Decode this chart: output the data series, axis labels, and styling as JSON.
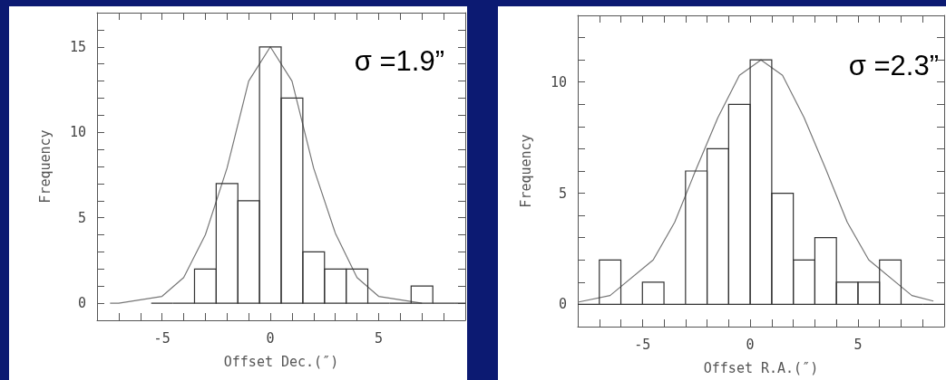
{
  "chart_data": [
    {
      "type": "histogram",
      "xlabel": "Offset Dec.(″)",
      "ylabel": "Frequency",
      "annotations": [
        "σ =1.9”"
      ],
      "xlim": [
        -8,
        9
      ],
      "ylim": [
        -1,
        17
      ],
      "grid": false,
      "xticks": [
        {
          "value": -7,
          "label": null
        },
        {
          "value": -6,
          "label": null
        },
        -5,
        {
          "value": -4,
          "label": null
        },
        {
          "value": -3,
          "label": null
        },
        {
          "value": -2,
          "label": null
        },
        {
          "value": -1,
          "label": null
        },
        0,
        {
          "value": 1,
          "label": null
        },
        {
          "value": 2,
          "label": null
        },
        {
          "value": 3,
          "label": null
        },
        {
          "value": 4,
          "label": null
        },
        5,
        {
          "value": 6,
          "label": null
        },
        {
          "value": 7,
          "label": null
        },
        {
          "value": 8,
          "label": null
        }
      ],
      "yticks": [
        0,
        {
          "value": 1,
          "label": null
        },
        {
          "value": 2,
          "label": null
        },
        {
          "value": 3,
          "label": null
        },
        {
          "value": 4,
          "label": null
        },
        5,
        {
          "value": 6,
          "label": null
        },
        {
          "value": 7,
          "label": null
        },
        {
          "value": 8,
          "label": null
        },
        {
          "value": 9,
          "label": null
        },
        10,
        {
          "value": 11,
          "label": null
        },
        {
          "value": 12,
          "label": null
        },
        {
          "value": 13,
          "label": null
        },
        {
          "value": 14,
          "label": null
        },
        15,
        {
          "value": 16,
          "label": null
        }
      ],
      "series": [
        {
          "color": "#333333",
          "bins": [
            -5.5,
            -4.5,
            -3.5,
            -2.5,
            -1.5,
            -0.5,
            0.5,
            1.5,
            2.5,
            3.5,
            4.5,
            5.5,
            6.5,
            7.5,
            8.5,
            9
          ],
          "values": [
            0,
            0,
            2,
            7,
            6,
            15,
            12,
            3,
            2,
            2,
            0,
            0,
            1,
            0,
            0
          ]
        },
        {
          "type": "line",
          "color": "#777777",
          "x": [
            -7.4,
            -7,
            -6,
            -5,
            -4,
            -3,
            -2,
            -1,
            0,
            1,
            2,
            3,
            4,
            5,
            6,
            7
          ],
          "values": [
            0,
            0,
            0.2,
            0.4,
            1.5,
            4,
            7.9,
            13,
            15,
            13,
            7.9,
            4.1,
            1.5,
            0.4,
            0.2,
            0
          ]
        }
      ]
    },
    {
      "type": "histogram",
      "xlabel": "Offset R.A.(″)",
      "ylabel": "Frequency",
      "annotations": [
        "σ =2.3”"
      ],
      "xlim": [
        -8,
        9
      ],
      "ylim": [
        -1,
        13
      ],
      "grid": false,
      "xticks": [
        {
          "value": -7,
          "label": null
        },
        {
          "value": -6,
          "label": null
        },
        -5,
        {
          "value": -4,
          "label": null
        },
        {
          "value": -3,
          "label": null
        },
        {
          "value": -2,
          "label": null
        },
        {
          "value": -1,
          "label": null
        },
        0,
        {
          "value": 1,
          "label": null
        },
        {
          "value": 2,
          "label": null
        },
        {
          "value": 3,
          "label": null
        },
        {
          "value": 4,
          "label": null
        },
        5,
        {
          "value": 6,
          "label": null
        },
        {
          "value": 7,
          "label": null
        },
        {
          "value": 8,
          "label": null
        }
      ],
      "yticks": [
        0,
        {
          "value": 1,
          "label": null
        },
        {
          "value": 2,
          "label": null
        },
        {
          "value": 3,
          "label": null
        },
        {
          "value": 4,
          "label": null
        },
        5,
        {
          "value": 6,
          "label": null
        },
        {
          "value": 7,
          "label": null
        },
        {
          "value": 8,
          "label": null
        },
        {
          "value": 9,
          "label": null
        },
        10,
        {
          "value": 11,
          "label": null
        },
        {
          "value": 12,
          "label": null
        }
      ],
      "series": [
        {
          "color": "#333333",
          "bins": [
            -8,
            -7,
            -6,
            -5,
            -4,
            -3,
            -2,
            -1,
            0,
            1,
            2,
            3,
            4,
            5,
            6,
            7,
            8,
            9
          ],
          "values": [
            0,
            2,
            0,
            1,
            0,
            6,
            7,
            9,
            11,
            5,
            2,
            3,
            1,
            1,
            2,
            0,
            0
          ]
        },
        {
          "type": "line",
          "color": "#777777",
          "x": [
            -8,
            -6.5,
            -4.5,
            -3.5,
            -2.5,
            -1.5,
            -0.5,
            0.5,
            1.5,
            2.5,
            3.5,
            4.5,
            5.5,
            7.5,
            8.5
          ],
          "values": [
            0.1,
            0.4,
            2,
            3.7,
            6.1,
            8.4,
            10.3,
            11,
            10.3,
            8.4,
            6.1,
            3.7,
            2,
            0.4,
            0.15
          ]
        }
      ]
    }
  ]
}
